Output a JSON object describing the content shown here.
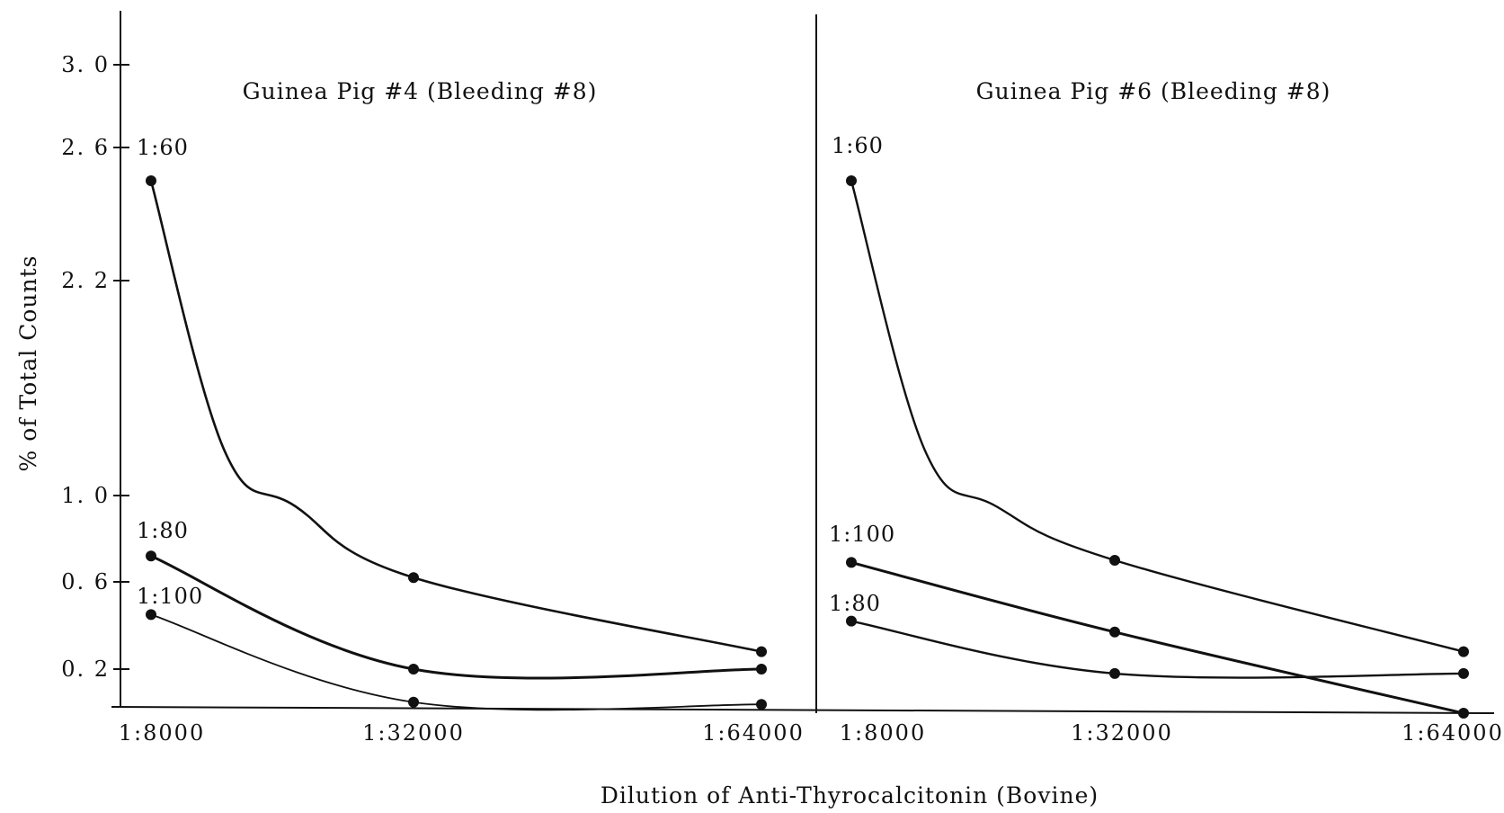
{
  "chart_data": [
    {
      "type": "line",
      "title": "Guinea Pig #4 (Bleeding #8)",
      "xlabel": "Dilution of Anti-Thyrocalcitonin (Bovine)",
      "ylabel": "% of Total Counts",
      "categories": [
        "1:8000",
        "1:32000",
        "1:64000"
      ],
      "y_ticks": [
        "3. 0",
        "2. 6",
        "2. 2",
        "1. 0",
        "0. 6",
        "0. 2"
      ],
      "series": [
        {
          "name": "1:60",
          "values": [
            2.5,
            0.62,
            0.28
          ]
        },
        {
          "name": "1:80",
          "values": [
            0.72,
            0.2,
            0.2
          ]
        },
        {
          "name": "1:100",
          "values": [
            0.45,
            0.05,
            0.04
          ]
        }
      ]
    },
    {
      "type": "line",
      "title": "Guinea Pig #6 (Bleeding #8)",
      "xlabel": "Dilution of Anti-Thyrocalcitonin (Bovine)",
      "ylabel": "% of Total Counts",
      "categories": [
        "1:8000",
        "1:32000",
        "1:64000"
      ],
      "series": [
        {
          "name": "1:60",
          "values": [
            2.5,
            0.7,
            0.28
          ]
        },
        {
          "name": "1:100",
          "values": [
            0.69,
            0.37,
            0.0
          ]
        },
        {
          "name": "1:80",
          "values": [
            0.42,
            0.18,
            0.18
          ]
        }
      ]
    }
  ]
}
